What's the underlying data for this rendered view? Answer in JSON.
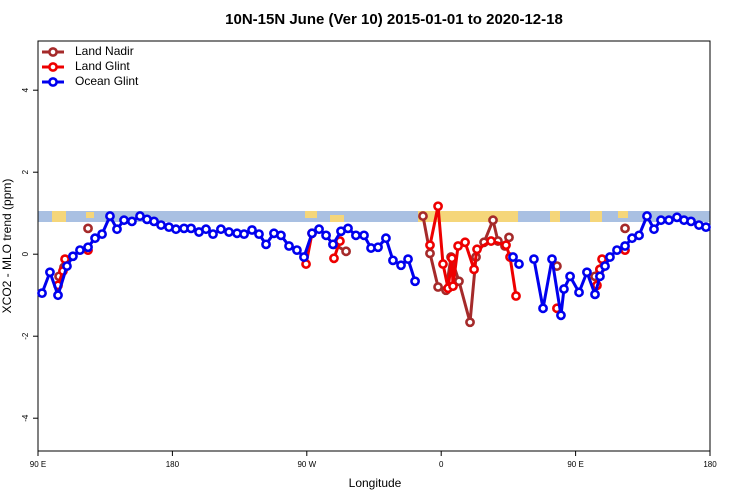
{
  "chart_data": {
    "type": "line",
    "title": "10N-15N June (Ver 10)   2015-01-01 to 2020-12-18",
    "x_label": "Longitude",
    "y_label": "XCO2 - MLO trend (ppm)",
    "xlim": [
      90,
      540
    ],
    "xticks": [
      {
        "value": 90,
        "label": "90 E"
      },
      180,
      {
        "value": 270,
        "label": "90 W"
      },
      {
        "value": 360,
        "label": "0"
      },
      {
        "value": 450,
        "label": "90 E"
      },
      {
        "value": 540,
        "label": "180"
      }
    ],
    "ylim": [
      -4.8,
      5.2
    ],
    "yticks": [
      -4,
      -2,
      0,
      2,
      4
    ],
    "legend": "top-left",
    "series": [
      {
        "name": "Land Nadir",
        "color": "#a52a2a",
        "x": [
          104.1,
          107.4,
          null,
          123.5,
          null,
          288.2,
          296.3,
          null,
          347.8,
          352.5,
          357.9,
          363.2,
          366.6,
          371.9,
          379.3,
          383.3,
          388.7,
          394.7,
          398.0,
          402.7,
          405.4,
          null,
          437.5,
          null,
          463.0,
          466.3,
          null,
          483.1
        ],
        "values": [
          -0.54,
          -0.32,
          null,
          0.63,
          null,
          0.24,
          0.07,
          null,
          0.93,
          0.02,
          -0.8,
          -0.88,
          -0.07,
          -0.66,
          -1.66,
          -0.07,
          0.29,
          0.83,
          0.32,
          0.2,
          0.41,
          null,
          -0.29,
          null,
          -0.54,
          -0.37,
          null,
          0.63
        ]
      },
      {
        "name": "Land Glint",
        "color": "#ee0000",
        "x": [
          103.4,
          106.7,
          108.1,
          null,
          123.5,
          null,
          269.5,
          273.5,
          null,
          288.2,
          292.2,
          null,
          352.5,
          357.9,
          361.2,
          364.6,
          367.2,
          367.9,
          371.3,
          376.0,
          382.0,
          384.0,
          393.4,
          403.4,
          406.1,
          410.1,
          null,
          437.5,
          null,
          464.3,
          466.3,
          467.7,
          null,
          483.1
        ],
        "values": [
          -0.76,
          -0.41,
          -0.12,
          null,
          0.1,
          null,
          -0.24,
          0.51,
          null,
          -0.1,
          0.32,
          null,
          0.22,
          1.17,
          -0.24,
          -0.83,
          -0.1,
          -0.78,
          0.2,
          0.29,
          -0.37,
          0.12,
          0.32,
          0.22,
          -0.07,
          -1.02,
          null,
          -1.32,
          null,
          -0.76,
          -0.37,
          -0.12,
          null,
          0.1
        ]
      },
      {
        "name": "Ocean Glint",
        "color": "#0000ee",
        "x": [
          92.7,
          98.0,
          103.4,
          109.4,
          113.4,
          118.1,
          123.5,
          128.2,
          132.9,
          138.2,
          142.9,
          147.6,
          152.9,
          158.3,
          163.0,
          167.7,
          172.4,
          177.7,
          182.4,
          187.8,
          192.5,
          197.8,
          202.5,
          207.2,
          212.5,
          217.9,
          223.3,
          228.0,
          233.3,
          238.0,
          242.7,
          248.0,
          252.7,
          258.1,
          263.4,
          268.1,
          273.5,
          278.2,
          282.9,
          287.5,
          292.9,
          297.6,
          302.9,
          308.3,
          313.0,
          317.7,
          323.0,
          327.7,
          333.1,
          337.8,
          342.5,
          null,
          408.1,
          412.1,
          null,
          422.1,
          428.2,
          434.2,
          440.2,
          442.2,
          446.3,
          452.3,
          457.6,
          463.0,
          466.3,
          469.7,
          473.0,
          477.7,
          483.1,
          487.8,
          492.5,
          497.8,
          502.5,
          507.2,
          512.5,
          517.9,
          522.6,
          527.3,
          532.6,
          537.3
        ],
        "values": [
          -0.95,
          -0.44,
          -1.0,
          -0.29,
          -0.05,
          0.1,
          0.17,
          0.39,
          0.49,
          0.93,
          0.61,
          0.83,
          0.8,
          0.93,
          0.85,
          0.8,
          0.71,
          0.66,
          0.61,
          0.63,
          0.63,
          0.54,
          0.61,
          0.49,
          0.61,
          0.54,
          0.51,
          0.49,
          0.59,
          0.49,
          0.24,
          0.51,
          0.46,
          0.2,
          0.1,
          -0.07,
          0.51,
          0.61,
          0.46,
          0.24,
          0.56,
          0.63,
          0.46,
          0.46,
          0.15,
          0.17,
          0.39,
          -0.15,
          -0.27,
          -0.12,
          -0.66,
          null,
          -0.07,
          -0.24,
          null,
          -0.12,
          -1.32,
          -0.12,
          -1.49,
          -0.85,
          -0.54,
          -0.93,
          -0.44,
          -0.98,
          -0.54,
          -0.29,
          -0.07,
          0.1,
          0.2,
          0.39,
          0.46,
          0.93,
          0.61,
          0.83,
          0.83,
          0.9,
          0.83,
          0.8,
          0.71,
          0.66
        ]
      }
    ]
  }
}
